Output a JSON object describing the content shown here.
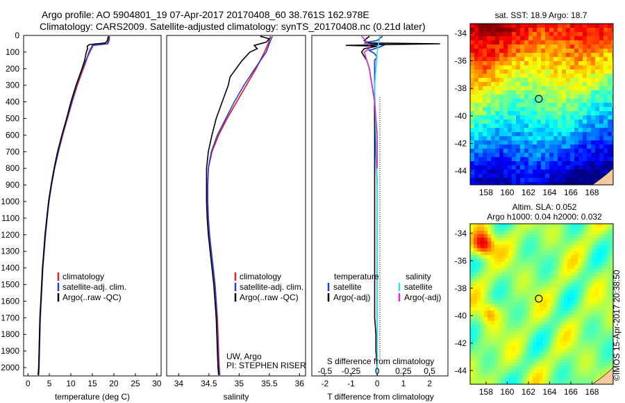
{
  "header": {
    "title_line1": "Argo profile: AO 5904801_19 07-Apr-2017 20170408_60 38.761S 162.978E",
    "title_line2": "Climatology: CARS2009. Satellite-adjusted climatology: synTS_20170408.nc (0.21d later)"
  },
  "colors": {
    "climatology": "#e8202a",
    "satellite": "#1f3fe0",
    "argo": "#000000",
    "sal_satellite": "#2ee0e8",
    "sal_argo": "#e02ad8"
  },
  "depth_axis": {
    "ticks": [
      0,
      100,
      200,
      300,
      400,
      500,
      600,
      700,
      800,
      900,
      1000,
      1100,
      1200,
      1300,
      1400,
      1500,
      1600,
      1700,
      1800,
      1900,
      2000
    ],
    "ylim": [
      0,
      2050
    ]
  },
  "chart_data": [
    {
      "type": "line",
      "id": "temperature",
      "xlabel": "temperature (deg C)",
      "xlim": [
        -1,
        31
      ],
      "xticks": [
        0,
        5,
        10,
        15,
        20,
        25,
        30
      ],
      "legend": [
        "climatology",
        "satellite-adj. clim.",
        "Argo(..raw -QC)"
      ],
      "series": [
        {
          "name": "climatology",
          "depth": [
            5,
            30,
            50,
            60,
            80,
            100,
            150,
            200,
            300,
            400,
            500,
            600,
            700,
            800,
            900,
            1000,
            1100,
            1200,
            1300,
            1400,
            1500,
            1600,
            1700,
            1800,
            1900,
            2000,
            2045
          ],
          "values": [
            19.0,
            18.9,
            18.6,
            15.0,
            14.6,
            14.2,
            13.6,
            12.9,
            11.5,
            10.3,
            9.2,
            8.1,
            7.1,
            6.2,
            5.5,
            4.9,
            4.4,
            4.0,
            3.7,
            3.4,
            3.2,
            3.0,
            2.8,
            2.7,
            2.6,
            2.5,
            2.4
          ]
        },
        {
          "name": "satellite-adj. clim.",
          "depth": [
            5,
            30,
            50,
            60,
            80,
            100,
            150,
            200,
            300,
            400,
            500,
            600,
            700,
            800,
            900,
            1000,
            1100,
            1200,
            1300,
            1400,
            1500,
            1600,
            1700,
            1800,
            1900,
            2000,
            2045
          ],
          "values": [
            18.9,
            18.8,
            18.4,
            15.2,
            14.8,
            14.4,
            13.5,
            12.7,
            11.3,
            10.2,
            9.1,
            8.0,
            7.1,
            6.2,
            5.5,
            4.9,
            4.5,
            4.1,
            3.8,
            3.5,
            3.3,
            3.1,
            2.9,
            2.8,
            2.7,
            2.6,
            2.5
          ]
        },
        {
          "name": "Argo(..raw -QC)",
          "depth": [
            5,
            30,
            45,
            55,
            65,
            80,
            100,
            150,
            200,
            300,
            400,
            500,
            600,
            700,
            800,
            900,
            1000,
            1100,
            1200,
            1300,
            1400,
            1500,
            1600,
            1700,
            1800,
            1900,
            2000,
            2045
          ],
          "values": [
            18.7,
            18.5,
            18.0,
            14.3,
            13.8,
            13.9,
            13.6,
            13.2,
            12.6,
            11.2,
            10.0,
            9.0,
            7.9,
            6.9,
            6.1,
            5.4,
            4.8,
            4.4,
            4.0,
            3.7,
            3.4,
            3.2,
            3.0,
            2.8,
            2.7,
            2.6,
            2.5,
            2.4
          ]
        }
      ]
    },
    {
      "type": "line",
      "id": "salinity",
      "xlabel": "salinity",
      "xlim": [
        33.8,
        36.1
      ],
      "xticks": [
        34,
        34.5,
        35,
        35.5,
        36
      ],
      "legend": [
        "climatology",
        "satellite-adj. clim.",
        "Argo(..raw -QC)"
      ],
      "annotation_line1": "UW, Argo",
      "annotation_line2": "PI: STEPHEN RISER",
      "series": [
        {
          "name": "climatology",
          "depth": [
            5,
            50,
            100,
            200,
            300,
            400,
            500,
            600,
            700,
            800,
            900,
            1000,
            1100,
            1200,
            1300,
            1400,
            1500,
            1600,
            1700,
            1800,
            1900,
            2000,
            2045
          ],
          "values": [
            35.52,
            35.48,
            35.42,
            35.28,
            35.12,
            34.96,
            34.8,
            34.66,
            34.55,
            34.49,
            34.48,
            34.48,
            34.49,
            34.51,
            34.54,
            34.57,
            34.6,
            34.62,
            34.64,
            34.65,
            34.66,
            34.67,
            34.68
          ]
        },
        {
          "name": "satellite-adj. clim.",
          "depth": [
            5,
            50,
            100,
            200,
            300,
            400,
            500,
            600,
            700,
            800,
            900,
            1000,
            1100,
            1200,
            1300,
            1400,
            1500,
            1600,
            1700,
            1800,
            1900,
            2000,
            2045
          ],
          "values": [
            35.55,
            35.5,
            35.45,
            35.26,
            35.08,
            34.92,
            34.78,
            34.64,
            34.54,
            34.49,
            34.48,
            34.48,
            34.49,
            34.51,
            34.54,
            34.57,
            34.6,
            34.62,
            34.63,
            34.64,
            34.65,
            34.66,
            34.67
          ]
        },
        {
          "name": "Argo(..raw -QC)",
          "depth": [
            5,
            20,
            40,
            60,
            80,
            100,
            150,
            200,
            250,
            300,
            400,
            500,
            600,
            700,
            800,
            900,
            1000,
            1100,
            1200,
            1300,
            1400,
            1500,
            1600,
            1700,
            1800,
            1900,
            2000,
            2045
          ],
          "values": [
            35.35,
            35.5,
            35.45,
            35.25,
            35.3,
            35.18,
            35.05,
            34.95,
            34.85,
            34.82,
            34.72,
            34.62,
            34.55,
            34.49,
            34.46,
            34.46,
            34.46,
            34.47,
            34.49,
            34.52,
            34.55,
            34.58,
            34.6,
            34.62,
            34.63,
            34.64,
            34.65,
            34.66
          ]
        }
      ]
    },
    {
      "type": "line",
      "id": "difference",
      "xlabel": "T difference from climatology",
      "xlabel_top": "S difference from climatology",
      "xlim": [
        -2.5,
        2.7
      ],
      "xticks": [
        -2,
        -1,
        0,
        1,
        2
      ],
      "xticks_top": [
        {
          "label": "-0.5",
          "value": -2
        },
        {
          "label": "-0.25",
          "value": -1
        },
        {
          "label": "0",
          "value": 0
        },
        {
          "label": "0.25",
          "value": 1
        },
        {
          "label": "0.5",
          "value": 2
        }
      ],
      "legend_title_left": "temperature",
      "legend_title_right": "salinity",
      "legend_left": [
        "satellite",
        "Argo(-adj)"
      ],
      "legend_right": [
        "satellite",
        "Argo(-adj)"
      ],
      "series": [
        {
          "name": "satellite",
          "group": "temperature",
          "depth": [
            5,
            30,
            45,
            55,
            70,
            90,
            110,
            130,
            150,
            200,
            300,
            400,
            500,
            700,
            900,
            1100,
            1300,
            1500,
            1700,
            1900,
            2045
          ],
          "values": [
            0.2,
            0.0,
            -0.5,
            0.3,
            0.1,
            -0.3,
            -0.1,
            0.0,
            -0.1,
            -0.1,
            -0.1,
            -0.1,
            -0.1,
            -0.05,
            0.0,
            0.0,
            0.0,
            0.0,
            0.0,
            0.0,
            0.0
          ]
        },
        {
          "name": "Argo(-adj)",
          "group": "temperature",
          "depth": [
            5,
            30,
            45,
            50,
            55,
            60,
            65,
            80,
            100,
            150,
            200,
            300,
            400,
            500,
            600,
            700,
            800,
            900,
            1000,
            1100,
            1200,
            1300,
            1400,
            1500,
            1600,
            1700,
            1800,
            1900,
            2000,
            2045
          ],
          "values": [
            -0.3,
            -0.5,
            -0.3,
            2.4,
            0.5,
            -1.2,
            0.0,
            -0.5,
            -0.6,
            -0.4,
            -0.3,
            -0.2,
            -0.1,
            -0.1,
            -0.1,
            -0.1,
            -0.1,
            -0.1,
            -0.1,
            -0.1,
            -0.1,
            -0.1,
            -0.1,
            -0.1,
            -0.1,
            -0.1,
            -0.05,
            -0.05,
            0.0,
            0.0
          ]
        },
        {
          "name": "satellite",
          "group": "salinity",
          "depth": [
            5,
            50,
            100,
            300,
            600,
            900,
            1200,
            1500,
            1800,
            2045
          ],
          "values": [
            0.1,
            0.05,
            0.0,
            -0.1,
            -0.05,
            0.0,
            0.0,
            0.0,
            0.0,
            0.0
          ]
        },
        {
          "name": "Argo(-adj)",
          "group": "salinity",
          "depth": [
            5,
            20,
            40,
            60,
            80,
            100,
            150,
            200,
            300,
            400,
            500,
            600,
            700,
            800
          ],
          "values": [
            -0.6,
            -0.5,
            -0.4,
            -0.3,
            -0.3,
            -0.5,
            -0.4,
            -0.3,
            -0.2,
            -0.1,
            -0.05,
            0.0,
            0.0,
            0.0
          ]
        }
      ]
    },
    {
      "type": "heatmap",
      "id": "sst-map",
      "title": "sat. SST: 18.9 Argo: 18.7",
      "xticks": [
        158,
        160,
        162,
        164,
        166,
        168
      ],
      "yticks": [
        -34,
        -36,
        -38,
        -40,
        -42,
        -44
      ],
      "xlim": [
        156.5,
        170
      ],
      "ylim": [
        -45,
        -33.3
      ],
      "argo_position": {
        "lon": 162.978,
        "lat": -38.761
      }
    },
    {
      "type": "heatmap",
      "id": "sla-map",
      "title_line1": "Altim. SLA: 0.052",
      "title_line2": "Argo h1000: 0.04 h2000: 0.032",
      "xticks": [
        158,
        160,
        162,
        164,
        166,
        168
      ],
      "yticks": [
        -34,
        -36,
        -38,
        -40,
        -42,
        -44
      ],
      "xlim": [
        156.5,
        170
      ],
      "ylim": [
        -45,
        -33.3
      ],
      "argo_position": {
        "lon": 162.978,
        "lat": -38.761
      }
    }
  ],
  "credit": "©IMOS 15-Apr-2017 20:38:50"
}
